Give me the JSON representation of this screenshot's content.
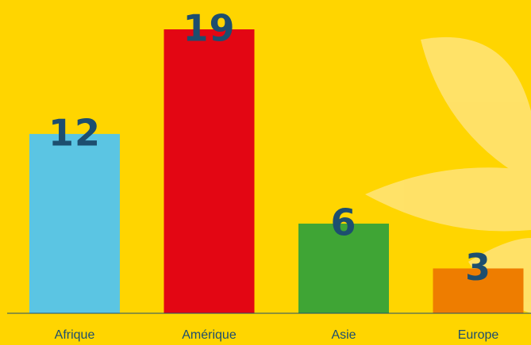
{
  "chart_data": {
    "type": "bar",
    "categories": [
      "Afrique",
      "Amérique",
      "Asie",
      "Europe"
    ],
    "values": [
      12,
      19,
      6,
      3
    ],
    "colors": [
      "#5bc5e3",
      "#e30613",
      "#3fa535",
      "#ee7d00"
    ]
  }
}
